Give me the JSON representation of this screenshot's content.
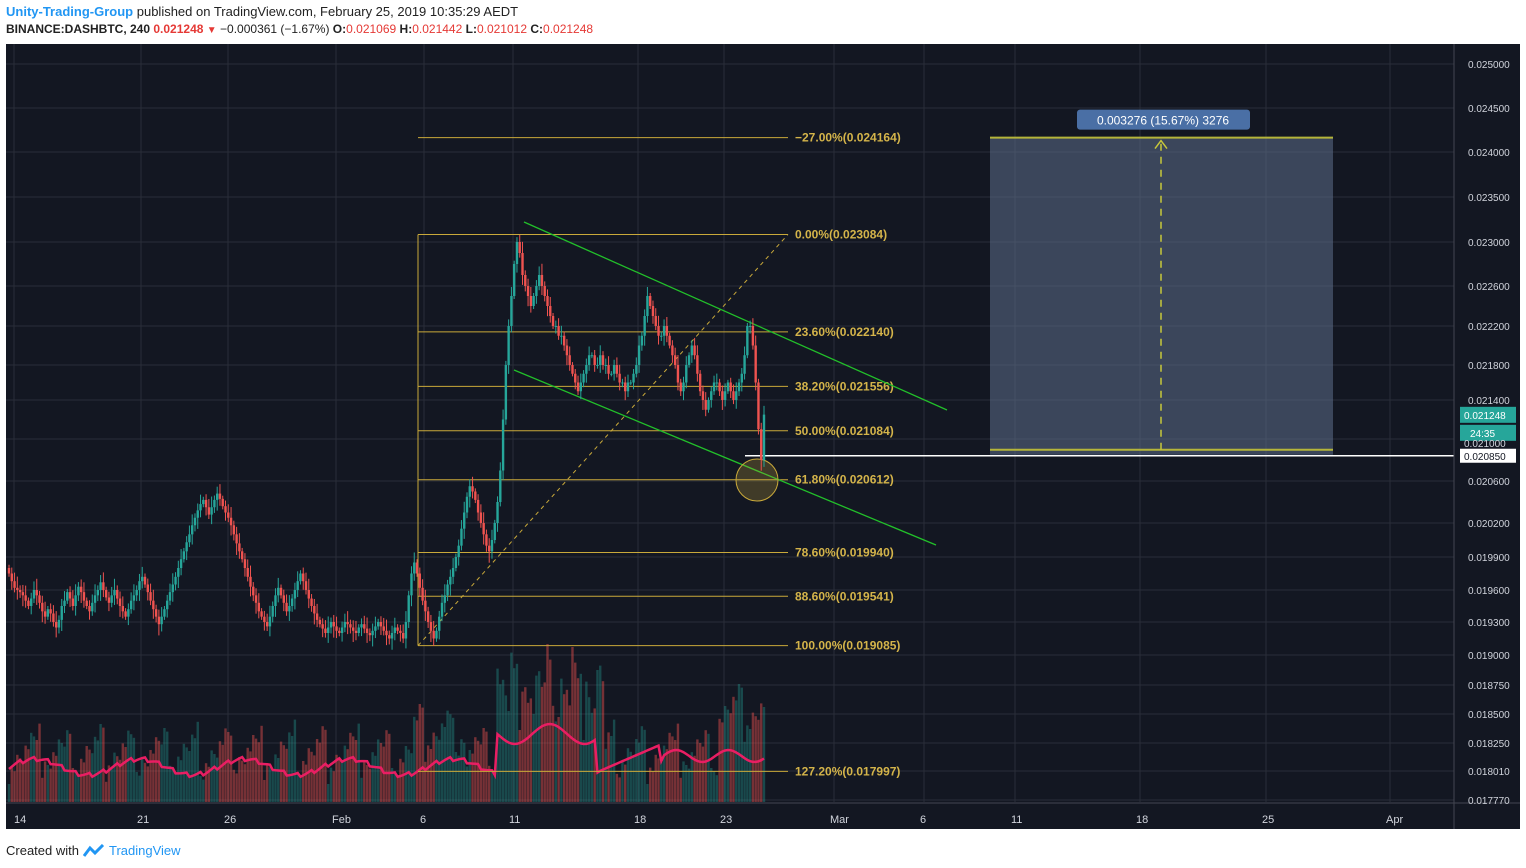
{
  "header": {
    "author": "Unity-Trading-Group",
    "published_text": "published on TradingView.com, February 25, 2019 10:35:29 AEDT",
    "symbol": "BINANCE:DASHBTC, 240",
    "last": "0.021248",
    "change": "−0.000361 (−1.67%)",
    "o_label": "O:",
    "o_value": "0.021069",
    "h_label": "H:",
    "h_value": "0.021442",
    "l_label": "L:",
    "l_value": "0.021012",
    "c_label": "C:",
    "c_value": "0.021248"
  },
  "footer": {
    "created_with": "Created with",
    "brand": "TradingView"
  },
  "colors": {
    "background": "#131722",
    "grid": "#2a2e39",
    "up": "#26a69a",
    "down": "#ef5350",
    "fib": "#c9a93a",
    "fib_text": "#d4b44a",
    "trend": "#22c02a",
    "volume_ma": "#e91e63",
    "projection_fill": "#5d6d8a",
    "label_blue": "#4a6fa5",
    "price_tag": "#26a69a"
  },
  "chart_data": {
    "type": "candlestick",
    "symbol": "BINANCE:DASHBTC",
    "interval": "240",
    "y_ticks": [
      "0.025000",
      "0.024500",
      "0.024000",
      "0.023500",
      "0.023000",
      "0.022600",
      "0.022200",
      "0.021800",
      "0.021400",
      "0.021000",
      "0.020600",
      "0.020200",
      "0.019900",
      "0.019600",
      "0.019300",
      "0.019000",
      "0.018750",
      "0.018500",
      "0.018250",
      "0.018010",
      "0.017770"
    ],
    "x_ticks": [
      "14",
      "21",
      "26",
      "Feb",
      "6",
      "11",
      "18",
      "23",
      "Mar",
      "6",
      "11",
      "18",
      "25",
      "Apr"
    ],
    "fib_levels": [
      {
        "label": "−27.00%(0.024164)",
        "price": 0.024164
      },
      {
        "label": "0.00%(0.023084)",
        "price": 0.023084
      },
      {
        "label": "23.60%(0.022140)",
        "price": 0.02214
      },
      {
        "label": "38.20%(0.021556)",
        "price": 0.021556
      },
      {
        "label": "50.00%(0.021084)",
        "price": 0.021084
      },
      {
        "label": "61.80%(0.020612)",
        "price": 0.020612
      },
      {
        "label": "78.60%(0.019940)",
        "price": 0.01994
      },
      {
        "label": "88.60%(0.019541)",
        "price": 0.019541
      },
      {
        "label": "100.00%(0.019085)",
        "price": 0.019085
      },
      {
        "label": "127.20%(0.017997)",
        "price": 0.017997
      }
    ],
    "projection_label": "0.003276 (15.67%) 3276",
    "price_tags": {
      "last_price": "0.021248",
      "countdown": "24:35",
      "entry_price": "0.020850",
      "partial": "0.021000"
    },
    "series_closes": [
      0.01975,
      0.01968,
      0.01962,
      0.0196,
      0.01958,
      0.01955,
      0.0195,
      0.01945,
      0.01952,
      0.0196,
      0.01955,
      0.01948,
      0.0194,
      0.01935,
      0.01942,
      0.01938,
      0.0193,
      0.01925,
      0.01932,
      0.01945,
      0.0195,
      0.01958,
      0.01952,
      0.01945,
      0.01955,
      0.01963,
      0.01958,
      0.0195,
      0.01945,
      0.0194,
      0.01948,
      0.01955,
      0.0196,
      0.01967,
      0.0196,
      0.01953,
      0.01948,
      0.01955,
      0.0196,
      0.01952,
      0.01945,
      0.0194,
      0.01935,
      0.01942,
      0.0195,
      0.01955,
      0.0196,
      0.01968,
      0.01972,
      0.01965,
      0.01958,
      0.0195,
      0.01942,
      0.01935,
      0.01928,
      0.01935,
      0.01942,
      0.0195,
      0.01958,
      0.01965,
      0.01972,
      0.0198,
      0.01988,
      0.01995,
      0.02003,
      0.0201,
      0.02018,
      0.02025,
      0.02032,
      0.02038,
      0.02042,
      0.02035,
      0.02028,
      0.02035,
      0.02042,
      0.02048,
      0.02043,
      0.02036,
      0.0203,
      0.02025,
      0.02018,
      0.0201,
      0.02002,
      0.01995,
      0.01988,
      0.0198,
      0.01972,
      0.01963,
      0.01955,
      0.01948,
      0.0194,
      0.01935,
      0.0193,
      0.01926,
      0.01935,
      0.01945,
      0.01955,
      0.01962,
      0.01955,
      0.01948,
      0.0194,
      0.01945,
      0.01952,
      0.0196,
      0.01968,
      0.01975,
      0.01968,
      0.0196,
      0.01952,
      0.01945,
      0.01938,
      0.01932,
      0.01928,
      0.01924,
      0.0192,
      0.01925,
      0.0193,
      0.01926,
      0.01922,
      0.0192,
      0.01925,
      0.0193,
      0.01928,
      0.01925,
      0.01922,
      0.0192,
      0.01925,
      0.01928,
      0.01924,
      0.0192,
      0.01918,
      0.01922,
      0.01926,
      0.0193,
      0.01926,
      0.01922,
      0.01918,
      0.01915,
      0.0192,
      0.01925,
      0.01922,
      0.0192,
      0.01915,
      0.0193,
      0.01955,
      0.01975,
      0.01985,
      0.01975,
      0.01962,
      0.0195,
      0.0194,
      0.0193,
      0.01922,
      0.01915,
      0.01922,
      0.01935,
      0.01948,
      0.01955,
      0.01965,
      0.01972,
      0.0198,
      0.0199,
      0.02,
      0.02015,
      0.0203,
      0.02045,
      0.02055,
      0.0205,
      0.02042,
      0.0203,
      0.0202,
      0.0201,
      0.02,
      0.01995,
      0.02005,
      0.0202,
      0.0204,
      0.0207,
      0.0212,
      0.0218,
      0.0222,
      0.0225,
      0.0228,
      0.023,
      0.0229,
      0.0227,
      0.0226,
      0.0225,
      0.0224,
      0.0225,
      0.0226,
      0.0227,
      0.0226,
      0.0225,
      0.0224,
      0.0223,
      0.0222,
      0.0222,
      0.0221,
      0.0221,
      0.022,
      0.0219,
      0.0218,
      0.0217,
      0.0216,
      0.0215,
      0.0216,
      0.0217,
      0.0218,
      0.0219,
      0.0219,
      0.0218,
      0.0218,
      0.0219,
      0.0218,
      0.0218,
      0.0217,
      0.0217,
      0.0218,
      0.0217,
      0.0216,
      0.0216,
      0.0215,
      0.0216,
      0.0216,
      0.0217,
      0.0218,
      0.022,
      0.0221,
      0.0223,
      0.0225,
      0.0224,
      0.0223,
      0.0222,
      0.0221,
      0.0221,
      0.0222,
      0.0221,
      0.022,
      0.0219,
      0.0218,
      0.0216,
      0.0215,
      0.0216,
      0.0218,
      0.0219,
      0.022,
      0.0219,
      0.0217,
      0.0215,
      0.0214,
      0.0213,
      0.0214,
      0.0215,
      0.0216,
      0.0216,
      0.0215,
      0.0214,
      0.0215,
      0.0216,
      0.0215,
      0.0214,
      0.0215,
      0.0216,
      0.0217,
      0.0219,
      0.0222,
      0.0222,
      0.022,
      0.0216,
      0.0211,
      0.0208,
      0.02125
    ]
  }
}
